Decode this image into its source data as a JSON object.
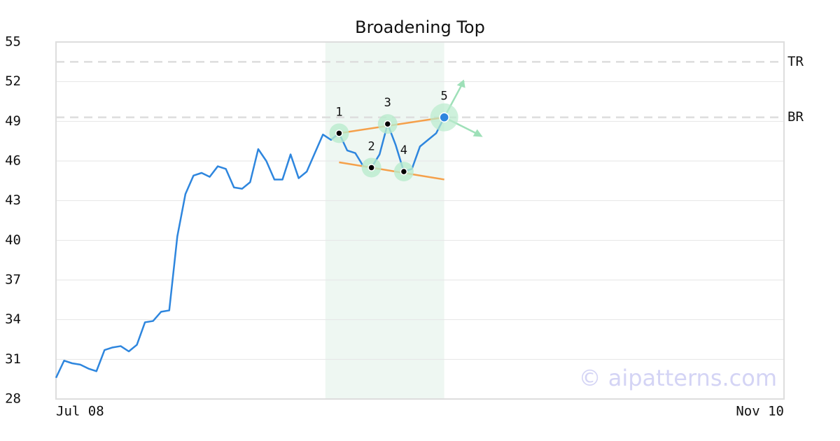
{
  "chart_data": {
    "type": "line",
    "title": "Broadening Top",
    "categories": [
      "Jul 08",
      null,
      null,
      null,
      null,
      null,
      null,
      null,
      null,
      null,
      null,
      null,
      null,
      null,
      null,
      null,
      null,
      null,
      null,
      null,
      null,
      null,
      null,
      null,
      null,
      null,
      null,
      null,
      null,
      null,
      null,
      null,
      null,
      null,
      null,
      null,
      null,
      null,
      null,
      null,
      null,
      null,
      null,
      null,
      null,
      null,
      null,
      null,
      null,
      null,
      null,
      null,
      null,
      null,
      null,
      null,
      null,
      null,
      null,
      null,
      null,
      null,
      null,
      null,
      null,
      null,
      null,
      null,
      null,
      null,
      null,
      null,
      null,
      null,
      null,
      null,
      null,
      null,
      null,
      null,
      null,
      null,
      null,
      null,
      null,
      null,
      null,
      null,
      null,
      null,
      "Nov 10"
    ],
    "series": [
      {
        "color": "#2e86de",
        "values": [
          29.6,
          30.9,
          30.7,
          30.6,
          30.3,
          30.1,
          31.7,
          31.9,
          32.0,
          31.6,
          32.1,
          33.8,
          33.9,
          34.6,
          34.7,
          40.3,
          43.5,
          44.9,
          45.1,
          44.8,
          45.6,
          45.4,
          44.0,
          43.9,
          44.4,
          46.9,
          46.0,
          44.6,
          44.6,
          46.5,
          44.7,
          45.2,
          46.6,
          48.0,
          47.6,
          48.1,
          46.8,
          46.6,
          45.6,
          45.5,
          46.5,
          48.8,
          47.2,
          45.2,
          45.4,
          47.1,
          47.6,
          48.1,
          49.3,
          null,
          null,
          null,
          null,
          null,
          null,
          null,
          null,
          null,
          null,
          null,
          null,
          null,
          null,
          null,
          null,
          null,
          null,
          null,
          null,
          null,
          null,
          null,
          null,
          null,
          null,
          null,
          null,
          null,
          null,
          null,
          null,
          null,
          null,
          null,
          null,
          null,
          null,
          null,
          null,
          null,
          null
        ]
      }
    ],
    "ylim": [
      28,
      55
    ],
    "yticks": [
      28,
      31,
      34,
      37,
      40,
      43,
      46,
      49,
      52,
      55
    ],
    "grid": true,
    "pattern_points": [
      {
        "label": "1",
        "index": 35,
        "value": 48.1
      },
      {
        "label": "2",
        "index": 39,
        "value": 45.5
      },
      {
        "label": "3",
        "index": 41,
        "value": 48.8
      },
      {
        "label": "4",
        "index": 43,
        "value": 45.2
      },
      {
        "label": "5",
        "index": 48,
        "value": 49.3
      }
    ],
    "trendlines": [
      {
        "color": "#f5a04a",
        "index": [
          35,
          48
        ],
        "values": [
          48.1,
          49.3
        ]
      },
      {
        "color": "#f5a04a",
        "index": [
          35,
          48
        ],
        "values": [
          45.9,
          44.6
        ]
      }
    ],
    "levels": [
      {
        "label": "TR",
        "value": 53.5
      },
      {
        "label": "BR",
        "value": 49.3
      }
    ],
    "highlight_range": [
      33.3,
      48
    ],
    "watermark": "© aipatterns.com"
  }
}
